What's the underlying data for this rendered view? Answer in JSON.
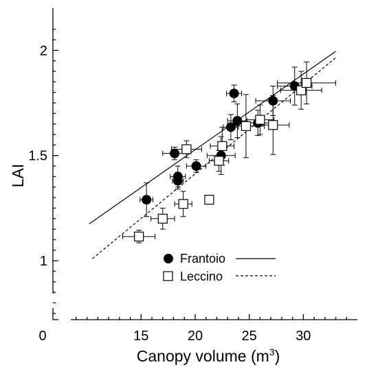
{
  "chart_data": {
    "type": "scatter",
    "xlabel": "Canopy volume (m",
    "xlabel_sup": "3",
    "xlabel_close": ")",
    "ylabel": "LAI",
    "xlim": [
      8.5,
      35
    ],
    "ylim": [
      0.72,
      2.2
    ],
    "x_origin_label": "0",
    "x_ticks": [
      15,
      20,
      25,
      30
    ],
    "y_ticks": [
      1,
      1.5,
      2
    ],
    "x_tick_labels": [
      "15",
      "20",
      "25",
      "30"
    ],
    "y_tick_labels": [
      "1",
      "1.5",
      "2"
    ],
    "axis_break": true,
    "grid": false,
    "legend_position": "bottom-center",
    "series": [
      {
        "name": "Frantoio",
        "marker": "filled-circle",
        "line_style": "solid",
        "fit": {
          "x": [
            10.2,
            33.0
          ],
          "y": [
            1.175,
            1.995
          ]
        },
        "points": [
          {
            "x": 15.5,
            "y": 1.29,
            "xerr": 0.6,
            "yerr": 0.08
          },
          {
            "x": 18.1,
            "y": 1.51,
            "xerr": 1.1,
            "yerr": 0.03
          },
          {
            "x": 18.4,
            "y": 1.4,
            "xerr": 0.7,
            "yerr": 0.05
          },
          {
            "x": 18.4,
            "y": 1.38,
            "xerr": 0.5,
            "yerr": 0.04
          },
          {
            "x": 20.1,
            "y": 1.45,
            "xerr": 0.9,
            "yerr": 0.03
          },
          {
            "x": 22.4,
            "y": 1.5,
            "xerr": 1.3,
            "yerr": 0.09
          },
          {
            "x": 23.3,
            "y": 1.635,
            "xerr": 0.7,
            "yerr": 0.06
          },
          {
            "x": 23.6,
            "y": 1.795,
            "xerr": 0.7,
            "yerr": 0.04
          },
          {
            "x": 23.9,
            "y": 1.665,
            "xerr": 0.9,
            "yerr": 0.08
          },
          {
            "x": 25.8,
            "y": 1.655,
            "xerr": 1.0,
            "yerr": 0.06
          },
          {
            "x": 27.2,
            "y": 1.76,
            "xerr": 1.6,
            "yerr": 0.07
          },
          {
            "x": 29.2,
            "y": 1.83,
            "xerr": 1.6,
            "yerr": 0.09
          }
        ]
      },
      {
        "name": "Leccino",
        "marker": "open-square",
        "line_style": "dashed",
        "fit": {
          "x": [
            10.5,
            33.0
          ],
          "y": [
            1.01,
            1.965
          ]
        },
        "points": [
          {
            "x": 14.8,
            "y": 1.115,
            "xerr": 1.5,
            "yerr": 0.03
          },
          {
            "x": 17.0,
            "y": 1.2,
            "xerr": 1.1,
            "yerr": 0.05
          },
          {
            "x": 18.9,
            "y": 1.27,
            "xerr": 0.8,
            "yerr": 0.06
          },
          {
            "x": 19.2,
            "y": 1.53,
            "xerr": 1.4,
            "yerr": 0.04
          },
          {
            "x": 21.3,
            "y": 1.29,
            "xerr": 0.1,
            "yerr": 0.01
          },
          {
            "x": 22.2,
            "y": 1.475,
            "xerr": 0.9,
            "yerr": 0.05
          },
          {
            "x": 22.5,
            "y": 1.545,
            "xerr": 1.1,
            "yerr": 0.09
          },
          {
            "x": 24.7,
            "y": 1.64,
            "xerr": 1.7,
            "yerr": 0.15
          },
          {
            "x": 26.0,
            "y": 1.67,
            "xerr": 1.3,
            "yerr": 0.07
          },
          {
            "x": 27.2,
            "y": 1.645,
            "xerr": 1.5,
            "yerr": 0.14
          },
          {
            "x": 29.8,
            "y": 1.81,
            "xerr": 1.9,
            "yerr": 0.09
          },
          {
            "x": 30.3,
            "y": 1.845,
            "xerr": 2.7,
            "yerr": 0.1
          }
        ]
      }
    ]
  }
}
